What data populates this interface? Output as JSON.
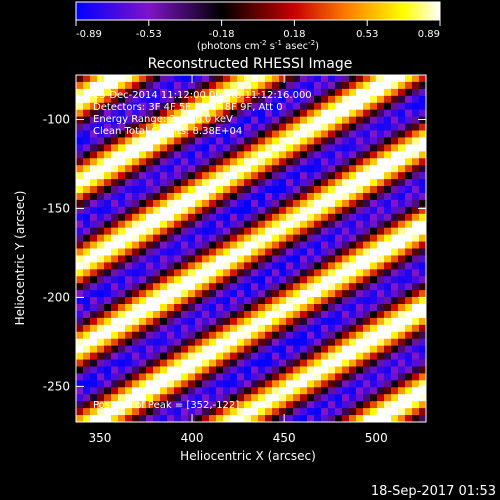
{
  "chart_data": {
    "type": "heatmap",
    "title": "Reconstructed RHESSI Image",
    "xlabel": "Heliocentric X (arcsec)",
    "ylabel": "Heliocentric Y (arcsec)",
    "xlim": [
      337,
      527
    ],
    "ylim": [
      -270,
      -75
    ],
    "xticks": [
      350,
      400,
      450,
      500
    ],
    "yticks": [
      -100,
      -150,
      -200,
      -250
    ],
    "colorbar": {
      "range": [
        -0.89,
        0.89
      ],
      "tick_labels": [
        "-0.89",
        "-0.53",
        "-0.18",
        "0.18",
        "0.53",
        "0.89"
      ],
      "label_prefix": "(photons cm",
      "label_exp1": "-2",
      "label_mid1": " s",
      "label_exp2": "-1",
      "label_mid2": " asec",
      "label_exp3": "-2",
      "label_suffix": ")"
    },
    "annotations": {
      "time": "25-Dec-2014 11:12:00.000 to 11:12:16.000",
      "detectors": "Detectors: 3F 4F 5F 6F 7F 8F 9F, Att 0",
      "energy": "Energy Range: 3.0 - 6.0 keV",
      "clean": "Clean  Total Counts: 8.38E+04",
      "peak": "Position of Peak = [352,-122]"
    },
    "colors": [
      "#0000ff",
      "#7f14c8",
      "#000000",
      "#c80000",
      "#ff8200",
      "#ffff00",
      "#ffffff"
    ]
  },
  "footer": {
    "timestamp": "18-Sep-2017 01:53"
  }
}
